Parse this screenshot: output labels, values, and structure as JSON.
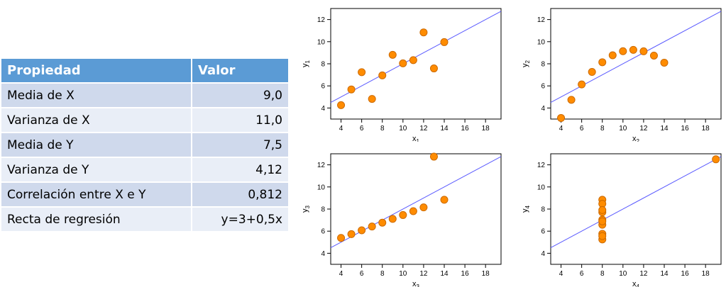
{
  "table": {
    "headers": [
      "Propiedad",
      "Valor"
    ],
    "rows": [
      [
        "Media de X",
        "9,0"
      ],
      [
        "Varianza de X",
        "11,0"
      ],
      [
        "Media de Y",
        "7,5"
      ],
      [
        "Varianza de Y",
        "4,12"
      ],
      [
        "Correlación entre X e Y",
        "0,812"
      ],
      [
        "Recta de regresión",
        "y=3+0,5x"
      ]
    ]
  },
  "colors": {
    "header_bg": "#5b9bd5",
    "row_odd_bg": "#cfd9ec",
    "row_even_bg": "#e9eef7",
    "marker_fill": "#ff8c00",
    "marker_edge": "#cc6a00",
    "regression_line": "#5a5aff"
  },
  "chart_data": [
    {
      "type": "scatter",
      "xlabel": "x",
      "xlabel_sub": "1",
      "ylabel": "y",
      "ylabel_sub": "1",
      "x": [
        10,
        8,
        13,
        9,
        11,
        14,
        6,
        4,
        12,
        7,
        5
      ],
      "y": [
        8.04,
        6.95,
        7.58,
        8.81,
        8.33,
        9.96,
        7.24,
        4.26,
        10.84,
        4.82,
        5.68
      ],
      "xticks": [
        "4",
        "6",
        "8",
        "10",
        "12",
        "14",
        "16",
        "18"
      ],
      "yticks": [
        "4",
        "6",
        "8",
        "10",
        "12"
      ],
      "xlim": [
        3,
        19.5
      ],
      "ylim": [
        3,
        13
      ],
      "regression": {
        "intercept": 3,
        "slope": 0.5
      }
    },
    {
      "type": "scatter",
      "xlabel": "x",
      "xlabel_sub": "2",
      "ylabel": "y",
      "ylabel_sub": "2",
      "x": [
        10,
        8,
        13,
        9,
        11,
        14,
        6,
        4,
        12,
        7,
        5
      ],
      "y": [
        9.14,
        8.14,
        8.74,
        8.77,
        9.26,
        8.1,
        6.13,
        3.1,
        9.13,
        7.26,
        4.74
      ],
      "xticks": [
        "4",
        "6",
        "8",
        "10",
        "12",
        "14",
        "16",
        "18"
      ],
      "yticks": [
        "4",
        "6",
        "8",
        "10",
        "12"
      ],
      "xlim": [
        3,
        19.5
      ],
      "ylim": [
        3,
        13
      ],
      "regression": {
        "intercept": 3,
        "slope": 0.5
      }
    },
    {
      "type": "scatter",
      "xlabel": "x",
      "xlabel_sub": "3",
      "ylabel": "y",
      "ylabel_sub": "3",
      "x": [
        10,
        8,
        13,
        9,
        11,
        14,
        6,
        4,
        12,
        7,
        5
      ],
      "y": [
        7.46,
        6.77,
        12.74,
        7.11,
        7.81,
        8.84,
        6.08,
        5.39,
        8.15,
        6.42,
        5.73
      ],
      "xticks": [
        "4",
        "6",
        "8",
        "10",
        "12",
        "14",
        "16",
        "18"
      ],
      "yticks": [
        "4",
        "6",
        "8",
        "10",
        "12"
      ],
      "xlim": [
        3,
        19.5
      ],
      "ylim": [
        3,
        13
      ],
      "regression": {
        "intercept": 3,
        "slope": 0.5
      }
    },
    {
      "type": "scatter",
      "xlabel": "x",
      "xlabel_sub": "4",
      "ylabel": "y",
      "ylabel_sub": "4",
      "x": [
        8,
        8,
        8,
        8,
        8,
        8,
        8,
        19,
        8,
        8,
        8
      ],
      "y": [
        6.58,
        5.76,
        7.71,
        8.84,
        8.47,
        7.04,
        5.25,
        12.5,
        5.56,
        7.91,
        6.89
      ],
      "xticks": [
        "4",
        "6",
        "8",
        "10",
        "12",
        "14",
        "16",
        "18"
      ],
      "yticks": [
        "4",
        "6",
        "8",
        "10",
        "12"
      ],
      "xlim": [
        3,
        19.5
      ],
      "ylim": [
        3,
        13
      ],
      "regression": {
        "intercept": 3,
        "slope": 0.5
      }
    }
  ]
}
